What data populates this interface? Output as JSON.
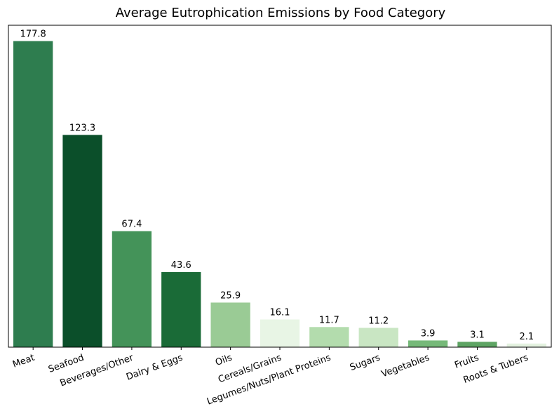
{
  "chart_data": {
    "type": "bar",
    "title": "Average Eutrophication Emissions by Food Category",
    "xlabel": "",
    "ylabel": "",
    "ylim": [
      0,
      187
    ],
    "categories": [
      "Meat",
      "Seafood",
      "Beverages/Other",
      "Dairy & Eggs",
      "Oils",
      "Cereals/Grains",
      "Legumes/Nuts/Plant Proteins",
      "Sugars",
      "Vegetables",
      "Fruits",
      "Roots & Tubers"
    ],
    "values": [
      177.8,
      123.3,
      67.4,
      43.6,
      25.9,
      16.1,
      11.7,
      11.2,
      3.9,
      3.1,
      2.1
    ],
    "value_labels": [
      "177.8",
      "123.3",
      "67.4",
      "43.6",
      "25.9",
      "16.1",
      "11.7",
      "11.2",
      "3.9",
      "3.1",
      "2.1"
    ],
    "colors": [
      "#2e7d4f",
      "#0b4f2a",
      "#449359",
      "#1a6b37",
      "#9acb95",
      "#e8f5e5",
      "#b3dcad",
      "#c9e6c3",
      "#76b979",
      "#5ea464",
      "#e4f2e0"
    ],
    "grid": false
  }
}
